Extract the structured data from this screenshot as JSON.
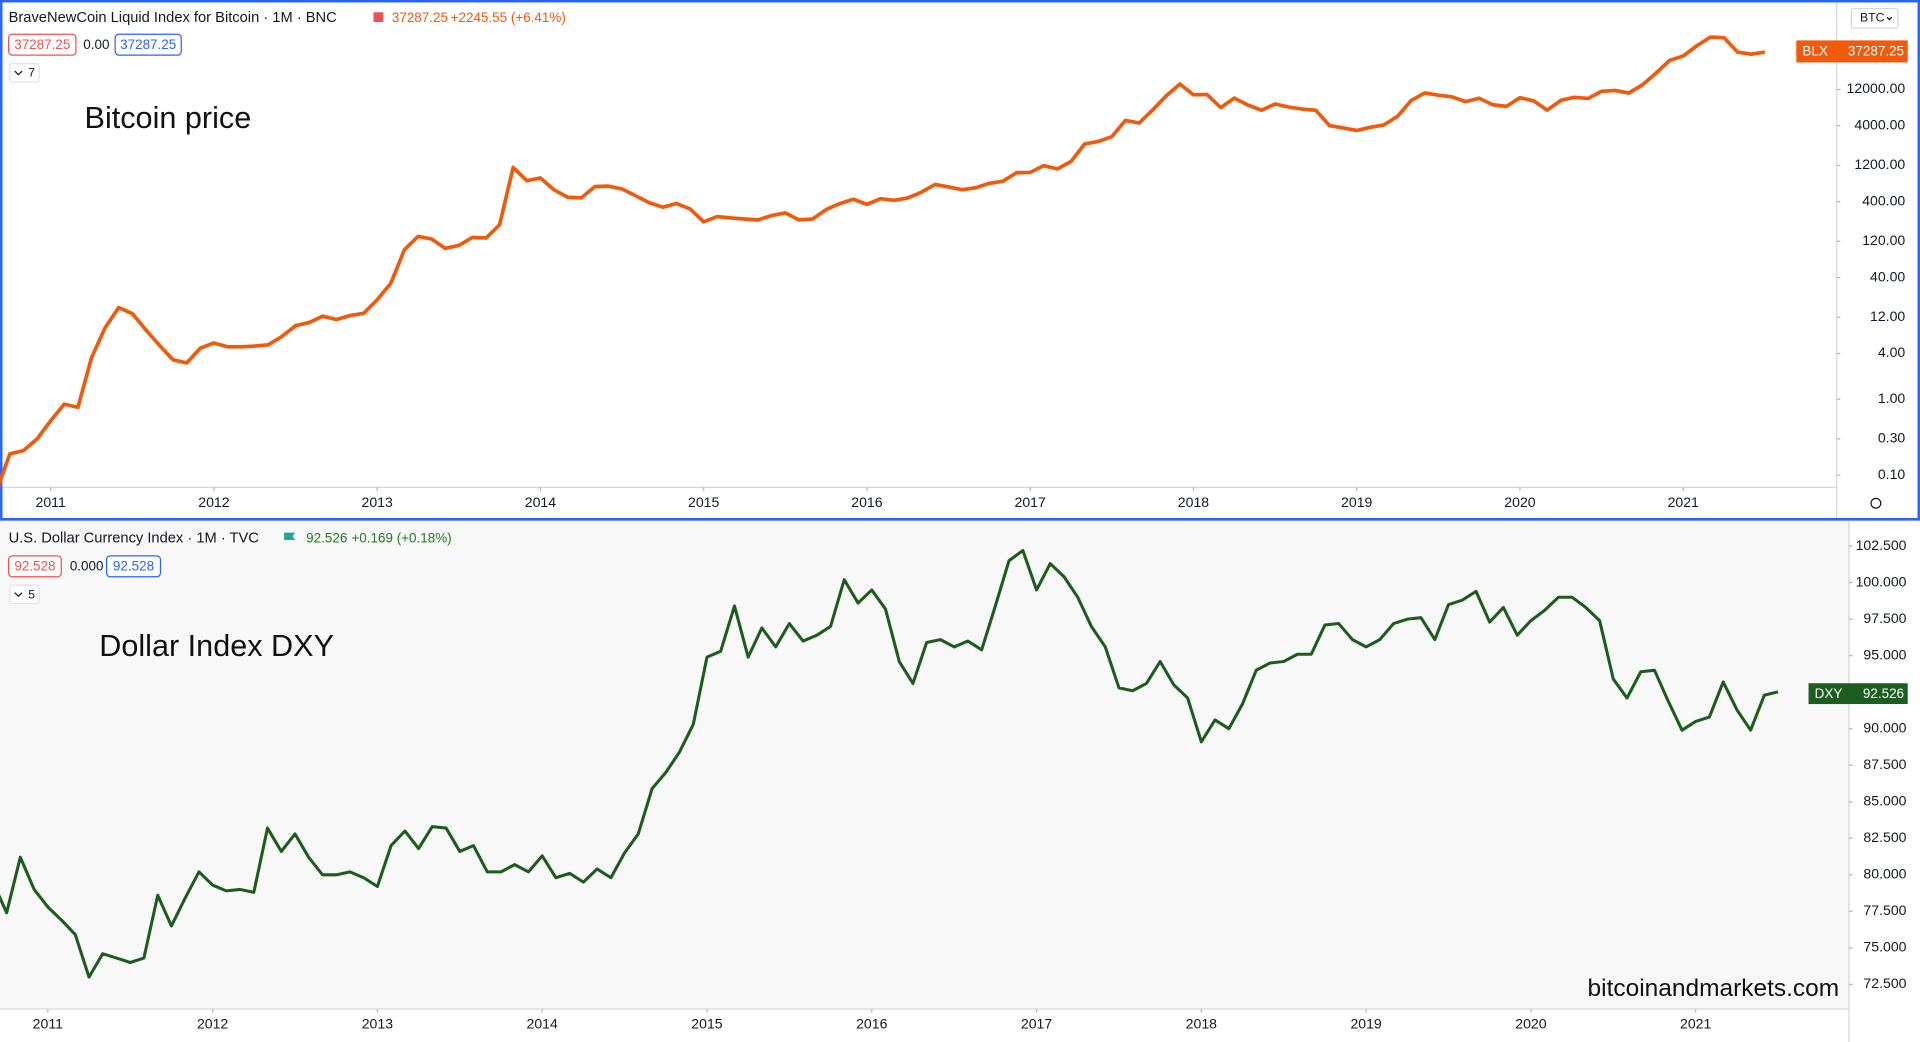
{
  "chart_data": [
    {
      "type": "line",
      "log": true,
      "grid": false,
      "title": "BraveNewCoin Liquid Index for Bitcoin · 1M · BNC",
      "last": "37287.25",
      "change": "+2245.55 (+6.41%)",
      "ohlc_boxes": [
        "37287.25",
        "0.00",
        "37287.25"
      ],
      "collapsed_count": "7",
      "annotation": "Bitcoin price",
      "price_tag": {
        "label": "BLX",
        "value": "37287.25"
      },
      "currency": "BTC",
      "color": "#ef5a0c",
      "xlim": [
        2010.69,
        2021.94
      ],
      "xticks": [
        2011,
        2012,
        2013,
        2014,
        2015,
        2016,
        2017,
        2018,
        2019,
        2020,
        2021
      ],
      "ylim": [
        0.069,
        181000
      ],
      "yticks": [
        {
          "value": 0.1,
          "label": "0.10"
        },
        {
          "value": 0.3,
          "label": "0.30"
        },
        {
          "value": 1,
          "label": "1.00"
        },
        {
          "value": 4,
          "label": "4.00"
        },
        {
          "value": 12,
          "label": "12.00"
        },
        {
          "value": 40,
          "label": "40.00"
        },
        {
          "value": 120,
          "label": "120.00"
        },
        {
          "value": 400,
          "label": "400.00"
        },
        {
          "value": 1200,
          "label": "1200.00"
        },
        {
          "value": 4000,
          "label": "4000.00"
        },
        {
          "value": 12000,
          "label": "12000.00"
        }
      ],
      "x": [
        2010.667,
        2010.75,
        2010.833,
        2010.917,
        2011,
        2011.083,
        2011.167,
        2011.25,
        2011.333,
        2011.417,
        2011.5,
        2011.583,
        2011.667,
        2011.75,
        2011.833,
        2011.917,
        2012,
        2012.083,
        2012.167,
        2012.25,
        2012.333,
        2012.417,
        2012.5,
        2012.583,
        2012.667,
        2012.75,
        2012.833,
        2012.917,
        2013,
        2013.083,
        2013.167,
        2013.25,
        2013.333,
        2013.417,
        2013.5,
        2013.583,
        2013.667,
        2013.75,
        2013.833,
        2013.917,
        2014,
        2014.083,
        2014.167,
        2014.25,
        2014.333,
        2014.417,
        2014.5,
        2014.583,
        2014.667,
        2014.75,
        2014.833,
        2014.917,
        2015,
        2015.083,
        2015.167,
        2015.25,
        2015.333,
        2015.417,
        2015.5,
        2015.583,
        2015.667,
        2015.75,
        2015.833,
        2015.917,
        2016,
        2016.083,
        2016.167,
        2016.25,
        2016.333,
        2016.417,
        2016.5,
        2016.583,
        2016.667,
        2016.75,
        2016.833,
        2016.917,
        2017,
        2017.083,
        2017.167,
        2017.25,
        2017.333,
        2017.417,
        2017.5,
        2017.583,
        2017.667,
        2017.75,
        2017.833,
        2017.917,
        2018,
        2018.083,
        2018.167,
        2018.25,
        2018.333,
        2018.417,
        2018.5,
        2018.583,
        2018.667,
        2018.75,
        2018.833,
        2018.917,
        2019,
        2019.083,
        2019.167,
        2019.25,
        2019.333,
        2019.417,
        2019.5,
        2019.583,
        2019.667,
        2019.75,
        2019.833,
        2019.917,
        2020,
        2020.083,
        2020.167,
        2020.25,
        2020.333,
        2020.417,
        2020.5,
        2020.583,
        2020.667,
        2020.75,
        2020.833,
        2020.917,
        2021,
        2021.083,
        2021.167,
        2021.25,
        2021.333,
        2021.417,
        2021.5
      ],
      "values": [
        0.06,
        0.19,
        0.21,
        0.3,
        0.52,
        0.86,
        0.78,
        3.5,
        8.7,
        16.1,
        13.4,
        8.2,
        5.1,
        3.3,
        3.0,
        4.7,
        5.5,
        4.9,
        4.9,
        5.0,
        5.2,
        6.7,
        9.3,
        10.2,
        12.4,
        11.2,
        12.6,
        13.5,
        20.4,
        33.4,
        93,
        139,
        129,
        97,
        106,
        135,
        133,
        198,
        1129,
        754,
        820,
        573,
        457,
        448,
        630,
        640,
        586,
        478,
        387,
        338,
        378,
        320,
        217,
        254,
        244,
        236,
        230,
        263,
        284,
        230,
        236,
        314,
        377,
        430,
        368,
        437,
        416,
        448,
        531,
        673,
        624,
        575,
        609,
        698,
        742,
        963,
        970,
        1190,
        1080,
        1350,
        2300,
        2480,
        2870,
        4700,
        4340,
        6450,
        9900,
        14150,
        10200,
        10320,
        6930,
        9240,
        7490,
        6390,
        7730,
        7030,
        6630,
        6370,
        4020,
        3740,
        3460,
        3810,
        4100,
        5320,
        8570,
        10800,
        10080,
        9600,
        8300,
        9200,
        7550,
        7190,
        9350,
        8520,
        6420,
        8630,
        9450,
        9140,
        11350,
        11650,
        10780,
        13800,
        19700,
        29000,
        33100,
        45200,
        58800,
        57700,
        37300,
        35000,
        37287.25
      ]
    },
    {
      "type": "line",
      "log": false,
      "grid": false,
      "title": "U.S. Dollar Currency Index · 1M · TVC",
      "last": "92.526",
      "change": "+0.169 (+0.18%)",
      "ohlc_boxes": [
        "92.528",
        "0.000",
        "92.528"
      ],
      "collapsed_count": "5",
      "annotation": "Dollar Index DXY",
      "price_tag": {
        "label": "DXY",
        "value": "92.526"
      },
      "watermark": "bitcoinandmarkets.com",
      "color": "#1e5b1e",
      "xlim": [
        2010.71,
        2021.93
      ],
      "xticks": [
        2011,
        2012,
        2013,
        2014,
        2015,
        2016,
        2017,
        2018,
        2019,
        2020,
        2021
      ],
      "ylim": [
        70.82,
        104.26
      ],
      "yticks": [
        {
          "value": 72.5,
          "label": "72.500"
        },
        {
          "value": 75,
          "label": "75.000"
        },
        {
          "value": 77.5,
          "label": "77.500"
        },
        {
          "value": 80,
          "label": "80.000"
        },
        {
          "value": 82.5,
          "label": "82.500"
        },
        {
          "value": 85,
          "label": "85.000"
        },
        {
          "value": 87.5,
          "label": "87.500"
        },
        {
          "value": 90,
          "label": "90.000"
        },
        {
          "value": 92.5,
          "label": "92.500"
        },
        {
          "value": 95,
          "label": "95.000"
        },
        {
          "value": 97.5,
          "label": "97.500"
        },
        {
          "value": 100,
          "label": "100.000"
        },
        {
          "value": 102.5,
          "label": "102.500"
        }
      ],
      "x": [
        2010.667,
        2010.75,
        2010.833,
        2010.917,
        2011,
        2011.083,
        2011.167,
        2011.25,
        2011.333,
        2011.417,
        2011.5,
        2011.583,
        2011.667,
        2011.75,
        2011.833,
        2011.917,
        2012,
        2012.083,
        2012.167,
        2012.25,
        2012.333,
        2012.417,
        2012.5,
        2012.583,
        2012.667,
        2012.75,
        2012.833,
        2012.917,
        2013,
        2013.083,
        2013.167,
        2013.25,
        2013.333,
        2013.417,
        2013.5,
        2013.583,
        2013.667,
        2013.75,
        2013.833,
        2013.917,
        2014,
        2014.083,
        2014.167,
        2014.25,
        2014.333,
        2014.417,
        2014.5,
        2014.583,
        2014.667,
        2014.75,
        2014.833,
        2014.917,
        2015,
        2015.083,
        2015.167,
        2015.25,
        2015.333,
        2015.417,
        2015.5,
        2015.583,
        2015.667,
        2015.75,
        2015.833,
        2015.917,
        2016,
        2016.083,
        2016.167,
        2016.25,
        2016.333,
        2016.417,
        2016.5,
        2016.583,
        2016.667,
        2016.75,
        2016.833,
        2016.917,
        2017,
        2017.083,
        2017.167,
        2017.25,
        2017.333,
        2017.417,
        2017.5,
        2017.583,
        2017.667,
        2017.75,
        2017.833,
        2017.917,
        2018,
        2018.083,
        2018.167,
        2018.25,
        2018.333,
        2018.417,
        2018.5,
        2018.583,
        2018.667,
        2018.75,
        2018.833,
        2018.917,
        2019,
        2019.083,
        2019.167,
        2019.25,
        2019.333,
        2019.417,
        2019.5,
        2019.583,
        2019.667,
        2019.75,
        2019.833,
        2019.917,
        2020,
        2020.083,
        2020.167,
        2020.25,
        2020.333,
        2020.417,
        2020.5,
        2020.583,
        2020.667,
        2020.75,
        2020.833,
        2020.917,
        2021,
        2021.083,
        2021.167,
        2021.25,
        2021.333,
        2021.417,
        2021.5
      ],
      "values": [
        79.5,
        77.4,
        81.2,
        79.0,
        77.8,
        76.9,
        75.9,
        73.0,
        74.6,
        74.3,
        74.0,
        74.3,
        78.6,
        76.5,
        78.4,
        80.2,
        79.3,
        78.9,
        79.0,
        78.8,
        83.2,
        81.6,
        82.8,
        81.2,
        80.0,
        80.0,
        80.2,
        79.8,
        79.2,
        82.0,
        83.0,
        81.8,
        83.3,
        83.2,
        81.6,
        82.0,
        80.2,
        80.2,
        80.7,
        80.2,
        81.3,
        79.8,
        80.1,
        79.5,
        80.4,
        79.8,
        81.5,
        82.8,
        85.9,
        87.0,
        88.4,
        90.3,
        94.9,
        95.3,
        98.4,
        94.9,
        96.9,
        95.6,
        97.2,
        96.0,
        96.4,
        97.0,
        100.2,
        98.6,
        99.5,
        98.2,
        94.6,
        93.1,
        95.9,
        96.1,
        95.6,
        96.0,
        95.4,
        98.4,
        101.5,
        102.2,
        99.5,
        101.3,
        100.4,
        99.0,
        97.0,
        95.6,
        92.8,
        92.6,
        93.1,
        94.6,
        93.0,
        92.1,
        89.1,
        90.6,
        90.0,
        91.7,
        94.0,
        94.5,
        94.6,
        95.1,
        95.1,
        97.1,
        97.2,
        96.1,
        95.6,
        96.1,
        97.2,
        97.5,
        97.6,
        96.1,
        98.5,
        98.8,
        99.4,
        97.3,
        98.3,
        96.4,
        97.4,
        98.1,
        99.0,
        99.0,
        98.3,
        97.4,
        93.4,
        92.1,
        93.9,
        94.0,
        91.9,
        89.9,
        90.5,
        90.8,
        93.2,
        91.3,
        89.9,
        92.3,
        92.526
      ]
    }
  ]
}
